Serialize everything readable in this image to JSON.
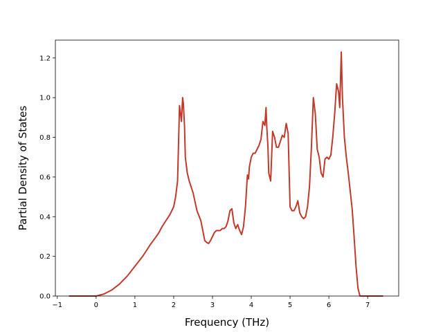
{
  "chart_data": {
    "type": "line",
    "title": "",
    "xlabel": "Frequency (THz)",
    "ylabel": "Partial Density of States",
    "xlim": [
      -1.05,
      7.8
    ],
    "ylim": [
      0.0,
      1.29
    ],
    "xticks": [
      -1,
      0,
      1,
      2,
      3,
      4,
      5,
      6,
      7
    ],
    "xtick_labels": [
      "−1",
      "0",
      "1",
      "2",
      "3",
      "4",
      "5",
      "6",
      "7"
    ],
    "yticks": [
      0.0,
      0.2,
      0.4,
      0.6,
      0.8,
      1.0,
      1.2
    ],
    "ytick_labels": [
      "0.0",
      "0.2",
      "0.4",
      "0.6",
      "0.8",
      "1.0",
      "1.2"
    ],
    "grid": false,
    "legend": "none",
    "series": [
      {
        "color": "#c0392b",
        "x": [
          -0.7,
          -0.3,
          0.0,
          0.2,
          0.4,
          0.6,
          0.8,
          1.0,
          1.2,
          1.4,
          1.55,
          1.62,
          1.7,
          1.8,
          1.9,
          2.0,
          2.05,
          2.1,
          2.15,
          2.2,
          2.23,
          2.25,
          2.28,
          2.3,
          2.35,
          2.4,
          2.5,
          2.6,
          2.7,
          2.75,
          2.8,
          2.85,
          2.9,
          2.95,
          3.0,
          3.05,
          3.1,
          3.2,
          3.25,
          3.3,
          3.35,
          3.4,
          3.45,
          3.5,
          3.55,
          3.6,
          3.65,
          3.7,
          3.75,
          3.8,
          3.85,
          3.9,
          3.93,
          3.95,
          4.0,
          4.05,
          4.1,
          4.15,
          4.2,
          4.25,
          4.3,
          4.35,
          4.38,
          4.4,
          4.43,
          4.45,
          4.5,
          4.55,
          4.6,
          4.65,
          4.7,
          4.75,
          4.8,
          4.85,
          4.9,
          4.92,
          4.95,
          5.0,
          5.05,
          5.1,
          5.15,
          5.2,
          5.25,
          5.3,
          5.35,
          5.4,
          5.45,
          5.5,
          5.55,
          5.6,
          5.65,
          5.7,
          5.75,
          5.8,
          5.85,
          5.9,
          5.95,
          6.0,
          6.05,
          6.1,
          6.15,
          6.2,
          6.25,
          6.28,
          6.32,
          6.35,
          6.4,
          6.45,
          6.5,
          6.55,
          6.6,
          6.65,
          6.7,
          6.75,
          6.8,
          6.9,
          7.0,
          7.2,
          7.4
        ],
        "y": [
          0.0,
          0.0,
          0.0,
          0.01,
          0.03,
          0.06,
          0.1,
          0.15,
          0.2,
          0.26,
          0.3,
          0.32,
          0.35,
          0.38,
          0.41,
          0.45,
          0.5,
          0.58,
          0.96,
          0.88,
          1.0,
          0.97,
          0.85,
          0.7,
          0.62,
          0.58,
          0.52,
          0.43,
          0.38,
          0.33,
          0.28,
          0.27,
          0.265,
          0.28,
          0.3,
          0.32,
          0.33,
          0.33,
          0.34,
          0.34,
          0.35,
          0.38,
          0.43,
          0.44,
          0.37,
          0.34,
          0.36,
          0.33,
          0.31,
          0.35,
          0.45,
          0.61,
          0.59,
          0.65,
          0.7,
          0.72,
          0.72,
          0.74,
          0.76,
          0.79,
          0.88,
          0.86,
          0.95,
          0.85,
          0.75,
          0.62,
          0.58,
          0.83,
          0.8,
          0.75,
          0.75,
          0.78,
          0.81,
          0.8,
          0.87,
          0.85,
          0.82,
          0.45,
          0.43,
          0.43,
          0.45,
          0.48,
          0.42,
          0.4,
          0.39,
          0.4,
          0.45,
          0.55,
          0.75,
          1.0,
          0.92,
          0.74,
          0.7,
          0.62,
          0.6,
          0.69,
          0.7,
          0.69,
          0.71,
          0.8,
          0.92,
          1.07,
          1.03,
          0.95,
          1.23,
          1.0,
          0.8,
          0.7,
          0.62,
          0.53,
          0.44,
          0.3,
          0.15,
          0.04,
          0.0,
          0.0,
          0.0,
          0.0,
          0.0
        ]
      }
    ]
  }
}
